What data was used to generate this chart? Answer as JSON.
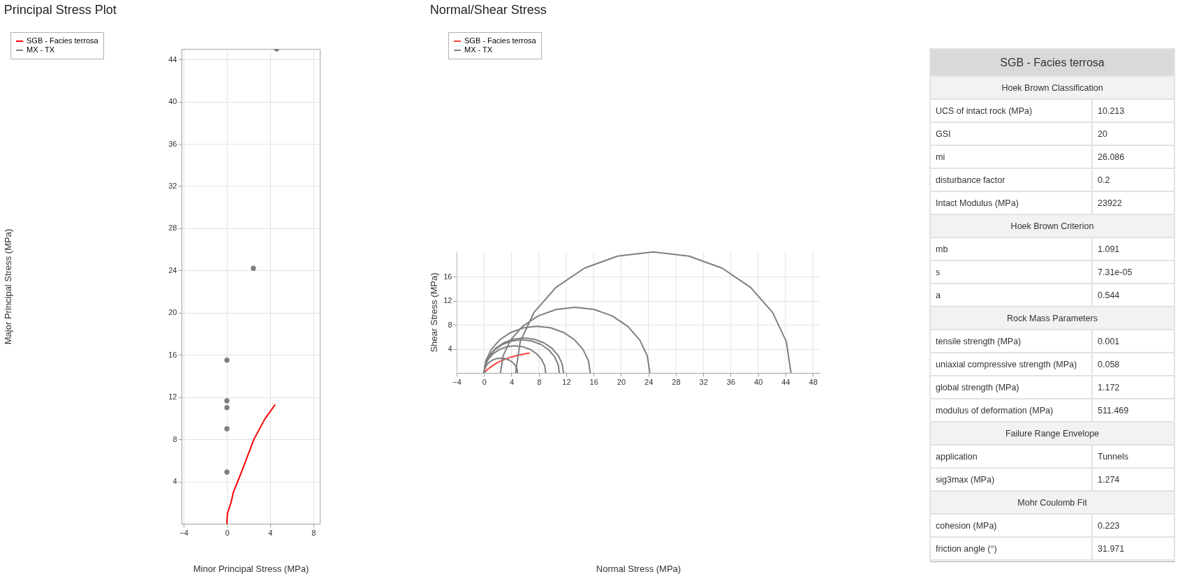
{
  "chart_data": [
    {
      "type": "line",
      "title": "Principal Stress Plot",
      "xlabel": "Minor Principal Stress (MPa)",
      "ylabel": "Major Principal Stress (MPa)",
      "xlim": [
        -4.2,
        8.6
      ],
      "ylim": [
        0,
        45
      ],
      "xticks": [
        -4,
        0,
        4,
        8
      ],
      "yticks": [
        4,
        8,
        12,
        16,
        20,
        24,
        28,
        32,
        36,
        40,
        44
      ],
      "grid": true,
      "legend": "top left",
      "series": [
        {
          "name": "SGB - Facies terrosa",
          "color": "#ff0000",
          "type": "line",
          "marker": "none",
          "x": [
            0,
            0.05,
            0.38,
            0.6,
            1.0,
            1.5,
            2.5,
            3.5,
            4.47
          ],
          "values": [
            0,
            1,
            2,
            3,
            4,
            5.3,
            8,
            9.9,
            11.3
          ]
        },
        {
          "name": "MX - TX",
          "color": "#7f7f7f",
          "type": "scatter",
          "marker": "circle",
          "x": [
            0,
            0,
            0,
            0,
            0,
            2.45,
            4.6
          ],
          "values": [
            4.9,
            9.0,
            11.0,
            11.65,
            15.5,
            24.2,
            45
          ]
        }
      ]
    },
    {
      "type": "line",
      "title": "Normal/Shear Stress",
      "xlabel": "Normal Stress (MPa)",
      "ylabel": "Shear Stress (MPa)",
      "xlim": [
        -4,
        49
      ],
      "ylim": [
        0,
        20.2
      ],
      "xticks": [
        -4,
        0,
        4,
        8,
        12,
        16,
        20,
        24,
        28,
        32,
        36,
        40,
        44,
        48
      ],
      "yticks": [
        4,
        8,
        12,
        16
      ],
      "grid": true,
      "legend": "top left",
      "series": [
        {
          "name": "SGB - Facies terrosa",
          "color": "#ff4040",
          "x": [
            0,
            0.5,
            1,
            2,
            3,
            4,
            5,
            6.65
          ],
          "values": [
            0,
            0.6,
            1.0,
            1.75,
            2.25,
            2.65,
            2.95,
            3.3
          ]
        },
        {
          "name": "MX - TX",
          "color": "#7f7f7f",
          "x": [
            4.9,
            4.82,
            4.57,
            4.18,
            3.68,
            3.08,
            2.45,
            1.82,
            1.22,
            0.72,
            0.33,
            0.08,
            0
          ],
          "values": [
            0,
            0.63,
            1.23,
            1.73,
            2.12,
            2.37,
            2.45,
            2.37,
            2.12,
            1.73,
            1.23,
            0.63,
            0
          ]
        },
        {
          "color": "#7f7f7f",
          "x": [
            9,
            8.85,
            8.4,
            7.68,
            6.75,
            5.67,
            4.5,
            3.33,
            2.25,
            1.32,
            0.6,
            0.15,
            0
          ],
          "values": [
            0,
            1.17,
            2.25,
            3.18,
            3.9,
            4.35,
            4.5,
            4.35,
            3.9,
            3.18,
            2.25,
            1.17,
            0
          ]
        },
        {
          "color": "#7f7f7f",
          "x": [
            11,
            10.81,
            10.26,
            9.39,
            8.25,
            6.92,
            5.5,
            4.08,
            2.75,
            1.61,
            0.74,
            0.19,
            0
          ],
          "values": [
            0,
            1.42,
            2.75,
            3.89,
            4.76,
            5.31,
            5.5,
            5.31,
            4.76,
            3.89,
            2.75,
            1.42,
            0
          ]
        },
        {
          "color": "#7f7f7f",
          "x": [
            11.6,
            11.4,
            10.82,
            9.9,
            8.7,
            7.3,
            5.8,
            4.3,
            2.9,
            1.7,
            0.78,
            0.2,
            0
          ],
          "values": [
            0,
            1.5,
            2.9,
            4.1,
            5.02,
            5.6,
            5.8,
            5.6,
            5.02,
            4.1,
            2.9,
            1.5,
            0
          ]
        },
        {
          "color": "#7f7f7f",
          "x": [
            15.5,
            15.24,
            14.46,
            13.23,
            11.63,
            9.76,
            7.75,
            5.74,
            3.87,
            2.27,
            1.04,
            0.26,
            0
          ],
          "values": [
            0,
            2.01,
            3.88,
            5.48,
            6.71,
            7.49,
            7.75,
            7.49,
            6.71,
            5.48,
            3.88,
            2.01,
            0
          ]
        },
        {
          "color": "#7f7f7f",
          "x": [
            24.2,
            23.83,
            22.74,
            21.01,
            18.75,
            16.12,
            13.3,
            10.48,
            7.85,
            5.59,
            3.86,
            2.77,
            2.4
          ],
          "values": [
            0,
            2.82,
            5.45,
            7.71,
            9.44,
            10.53,
            10.9,
            10.53,
            9.44,
            7.71,
            5.45,
            2.82,
            0
          ]
        },
        {
          "color": "#7f7f7f",
          "x": [
            44.8,
            44.12,
            42.11,
            38.91,
            34.75,
            29.91,
            24.7,
            19.49,
            14.65,
            10.49,
            7.29,
            5.28,
            4.6
          ],
          "values": [
            0,
            5.21,
            10.05,
            14.21,
            17.41,
            19.42,
            20.1,
            19.42,
            17.41,
            14.21,
            10.05,
            5.21,
            0
          ]
        }
      ]
    },
    {
      "type": "other",
      "title": "SGB - Facies terrosa",
      "categories": [
        "Hoek Brown Classification",
        "UCS of intact rock (MPa)",
        "GSI",
        "mi",
        "disturbance factor",
        "Intact Modulus (MPa)",
        "Hoek Brown Criterion",
        "mb",
        "s",
        "a",
        "Rock Mass Parameters",
        "tensile strength (MPa)",
        "uniaxial compressive strength (MPa)",
        "global strength (MPa)",
        "modulus of deformation (MPa)",
        "Failure Range Envelope",
        "application",
        "sig3max (MPa)",
        "Mohr Coulomb Fit",
        "cohesion (MPa)",
        "friction angle (°)"
      ],
      "value_labels": [
        null,
        "10.213",
        "20",
        "26.086",
        "0.2",
        "23922",
        null,
        "1.091",
        "7.31e-05",
        "0.544",
        null,
        "0.001",
        "0.058",
        "1.172",
        "511.469",
        null,
        "Tunnels",
        "1.274",
        null,
        "0.223",
        "31.971"
      ]
    }
  ]
}
